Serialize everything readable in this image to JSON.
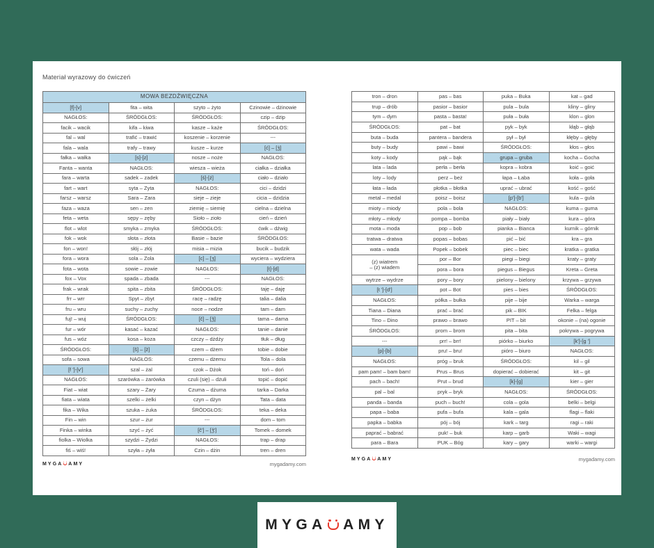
{
  "page": {
    "title": "Materiał wyrazowy do ćwiczeń",
    "site_url": "mygadamy.com",
    "logo_prefix": "MYGA",
    "logo_suffix": "AMY",
    "colors": {
      "background_green": "#306B58",
      "highlight_blue": "#B7D7E8",
      "logo_red": "#E8392B",
      "text_dark": "#3D3D3D"
    }
  },
  "left_table": {
    "header": "MOWA BEZDŹWIĘCZNA",
    "rows": [
      [
        {
          "t": "[f]-[v]",
          "h": 1
        },
        "fita – wita",
        "szyto – żyto",
        "Czinowie – dżinowie"
      ],
      [
        "NAGŁOS:",
        "ŚRÓDGŁOS:",
        "ŚRÓDGŁOS:",
        "czip – dżip"
      ],
      [
        "facik – wacik",
        "kifa – kiwa",
        "kasze – każe",
        "ŚRÓDGŁOS:"
      ],
      [
        "fal – wal",
        "trafić – trawić",
        "koszenie – korzenie",
        "---"
      ],
      [
        "fala – wala",
        "trafy – trawy",
        "kusze – kurze",
        {
          "t": "[ć] – [ʒ́]",
          "h": 1
        }
      ],
      [
        "fałka – wałka",
        {
          "t": "[s]-[z]",
          "h": 1
        },
        "nosze – noże",
        "NAGŁOS:"
      ],
      [
        "Fanta – wanta",
        "NAGŁOS:",
        "wiesza – wieża",
        "ciałka – działka"
      ],
      [
        "fara – warta",
        "sadek – zadek",
        {
          "t": "[ś]-[ź]",
          "h": 1
        },
        "ciało – działo"
      ],
      [
        "fart – wart",
        "syta – Zyta",
        "NAGŁOS:",
        "cici – dzidzi"
      ],
      [
        "farsz – warsz",
        "Sara – Zara",
        "sieje – zieje",
        "cicia – dzidzia"
      ],
      [
        "faza – waza",
        "sen – zen",
        "ziemię – siemię",
        "cielna – dzielna"
      ],
      [
        "feta – weta",
        "sępy – zęby",
        "Sioło – zioło",
        "cień – dzień"
      ],
      [
        "flot – wlot",
        "smyka – zmyka",
        "ŚRÓDGŁOS:",
        "ćwik – dźwig"
      ],
      [
        "fok – wok",
        "słota – złota",
        "Basie – bazie",
        "ŚRÓDGŁOS:"
      ],
      [
        "fon – won!",
        "słój – złój",
        "misia – mizia",
        "bucik – budzik"
      ],
      [
        "fora – wora",
        "sola – Zola",
        {
          "t": "[c] – [ʒ]",
          "h": 1
        },
        "wyciera – wydziera"
      ],
      [
        "fota – wota",
        "sowie – zowie",
        "NAGŁOS:",
        {
          "t": "[t]-[d]",
          "h": 1
        }
      ],
      [
        "fox – Vox",
        "spada – zbada",
        "---",
        "NAGŁOS:"
      ],
      [
        "frak – wrak",
        "spita – zbita",
        "ŚRÓDGŁOS:",
        "taję – daję"
      ],
      [
        "frr – wrr",
        "Spyt – zbyt",
        "racę – radzę",
        "talia – dalia"
      ],
      [
        "fru – wru",
        "suchy – zuchy",
        "noce – nodze",
        "tam – dam"
      ],
      [
        "fuj! – wuj",
        "ŚRÓDGŁOS:",
        {
          "t": "[č] – [ǯ]",
          "h": 1
        },
        "tama – dama"
      ],
      [
        "fur – wór",
        "kasać – kazać",
        "NAGŁOS:",
        "tanie – danie"
      ],
      [
        "fus – wóz",
        "kosa – koza",
        "czczy – dżdży",
        "tłuk – dług"
      ],
      [
        "ŚRÓDGŁOS:",
        {
          "t": "[š] – [ž]",
          "h": 1
        },
        "czem – dżem",
        "tobie – dobie"
      ],
      [
        "sofa – sowa",
        "NAGŁOS:",
        "czemu – dżemu",
        "Tola – dola"
      ],
      [
        {
          "t": "[f ']-[v']",
          "h": 1
        },
        "szal – żal",
        "czok – Dżok",
        "toń – doń"
      ],
      [
        "NAGŁOS:",
        "szarówka – żarówka",
        "czuli (się) – dżuli",
        "topić – dopić"
      ],
      [
        "Fiat – wiat",
        "szary – Żary",
        "Czuma – dżuma",
        "tarka – Darka"
      ],
      [
        "fiata – wiata",
        "szelki – żelki",
        "czyn – dżyn",
        "Tata – data"
      ],
      [
        "fika – Wika",
        "szuka – żuka",
        "ŚRÓDGŁOS:",
        "teka – deka"
      ],
      [
        "Fin – win",
        "szur – żur",
        "---",
        "dom – tom"
      ],
      [
        "Finka – winka",
        "szyć – żyć",
        {
          "t": "[č'] – [ǯ']",
          "h": 1
        },
        "Tomek – domek"
      ],
      [
        "fiolka – Wiolka",
        "szydzi – Żydzi",
        "NAGŁOS:",
        "trap – drap"
      ],
      [
        "fiś – wiś!",
        "szyła – żyła",
        "Czin – dżin",
        "tren – dren"
      ]
    ]
  },
  "right_table": {
    "rows": [
      [
        "tron – dron",
        "pas – bas",
        "puka – Buka",
        "kat – gad"
      ],
      [
        "trup – drób",
        "pasior – basior",
        "pula – bula",
        "kliny – gliny"
      ],
      [
        "tym – dym",
        "pasta – basta!",
        "puła – buła",
        "klon – glon"
      ],
      [
        "ŚRÓDGŁOS:",
        "pat – bat",
        "pyk – byk",
        "kłąb – głąb"
      ],
      [
        "buta – buda",
        "pantera – bandera",
        "pył – był",
        "kłęby – głęby"
      ],
      [
        "buty – budy",
        "pawi – bawi",
        "ŚRÓDGŁOS:",
        "kłos – głos"
      ],
      [
        "koty – kody",
        "pąk – bąk",
        {
          "t": "grupa – gruba",
          "h": 1
        },
        "kocha – Gocha"
      ],
      [
        "lata – lada",
        "perła – berła",
        "kopra – kobra",
        "koić – goić"
      ],
      [
        "loty – lody",
        "perz – beż",
        "łapa – Łaba",
        "koła – goła"
      ],
      [
        "łata – łada",
        "płotka – błotka",
        "uprać – ubrać",
        "kość – gość"
      ],
      [
        "metal – medal",
        "poisz – boisz",
        {
          "t": "[p']-[b']",
          "h": 1
        },
        "kula – gula"
      ],
      [
        "mioty – miody",
        "pola – bola",
        "NAGŁOS:",
        "kuma – guma"
      ],
      [
        "młoty – młody",
        "pompa – bomba",
        "piały – biały",
        "kura – góra"
      ],
      [
        "mota – moda",
        "pop – bob",
        "pianka – Bianca",
        "kurnik – górnik"
      ],
      [
        "tratwa – dratwa",
        "popas – bobas",
        "pić – bić",
        "kra – gra"
      ],
      [
        "wata – wada",
        "Popek – bobek",
        "piec – biec",
        "kratka – gratka"
      ],
      [
        {
          "t": "(z) wiatrem\n– (z) wiadem",
          "rs": 2
        },
        "por – Bor",
        "piegi – biegi",
        "kraty – graty"
      ],
      [
        "pora – bora",
        "piegus – Biegus",
        "Kreta – Greta"
      ],
      [
        "wytrze – wydrze",
        "pory – bory",
        "pielony – bielony",
        "krzywa – grzywa"
      ],
      [
        {
          "t": "[t ']-[d']",
          "h": 1
        },
        "pot – Bot",
        "pies – bies",
        "ŚRÓDGŁOS:"
      ],
      [
        "NAGŁOS:",
        "półka – bułka",
        "pije – bije",
        "Warka – warga"
      ],
      [
        "Tiana – Diana",
        "prać – brać",
        "pik – BIK",
        "Felka – felga"
      ],
      [
        "Tino – Dino",
        "prawo – brawo",
        "PIT – bit",
        "okonie – (na) ogonie"
      ],
      [
        "ŚRÓDGŁOS:",
        "prom – brom",
        "pita – bita",
        "pokrywa – pogrywa"
      ],
      [
        "---",
        "prr! – brr!",
        "piórko – biurko",
        {
          "t": "[k']-[g ']",
          "h": 1
        }
      ],
      [
        {
          "t": "[p]-[b]",
          "h": 1
        },
        "pru! – bru!",
        "pióro – biuro",
        "NAGŁOS:"
      ],
      [
        "NAGŁOS:",
        "próg – bruk",
        "ŚRÓDGŁOS:",
        "kil – gil"
      ],
      [
        "pam pam! – bam bam!",
        "Prus – Brus",
        "dopierać – dobierać",
        "kit – git"
      ],
      [
        "pach – bach!",
        "Prut – brud",
        {
          "t": "[k]-[g]",
          "h": 1
        },
        "kier – gier"
      ],
      [
        "pal – bal",
        "pryk – bryk",
        "NAGŁOS:",
        "ŚRÓDGŁOS:"
      ],
      [
        "panda – banda",
        "puch – buch!",
        "cola – gola",
        "belki – belgi"
      ],
      [
        "papa – baba",
        "pufa – bufa",
        "kala – gala",
        "flagi – flaki"
      ],
      [
        "papka – babka",
        "pój – bój",
        "kark – targ",
        "ragi – raki"
      ],
      [
        "paprać – babrać",
        "puk! – buk",
        "karp – garb",
        "Waki – wagi"
      ],
      [
        "para – Bara",
        "PUK – Bóg",
        "kary – gary",
        "warki – wargi"
      ]
    ]
  }
}
